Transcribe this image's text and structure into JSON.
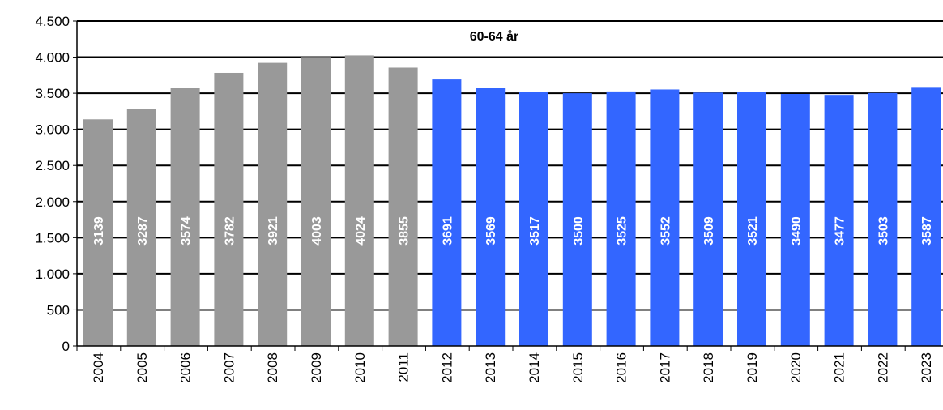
{
  "chart_data": {
    "type": "bar",
    "title": "60-64 år",
    "xlabel": "",
    "ylabel": "",
    "ylim": [
      0,
      4500
    ],
    "yticks": [
      0,
      500,
      1000,
      1500,
      2000,
      2500,
      3000,
      3500,
      4000,
      4500
    ],
    "ytick_labels": [
      "0",
      "500",
      "1.000",
      "1.500",
      "2.000",
      "2.500",
      "3.000",
      "3.500",
      "4.000",
      "4.500"
    ],
    "grid": true,
    "categories": [
      "2004",
      "2005",
      "2006",
      "2007",
      "2008",
      "2009",
      "2010",
      "2011",
      "2012",
      "2013",
      "2014",
      "2015",
      "2016",
      "2017",
      "2018",
      "2019",
      "2020",
      "2021",
      "2022",
      "2023"
    ],
    "values": [
      3139,
      3287,
      3574,
      3782,
      3921,
      4003,
      4024,
      3855,
      3691,
      3569,
      3517,
      3500,
      3525,
      3552,
      3509,
      3521,
      3490,
      3477,
      3503,
      3587
    ],
    "bar_colors": [
      "#999999",
      "#999999",
      "#999999",
      "#999999",
      "#999999",
      "#999999",
      "#999999",
      "#999999",
      "#3366ff",
      "#3366ff",
      "#3366ff",
      "#3366ff",
      "#3366ff",
      "#3366ff",
      "#3366ff",
      "#3366ff",
      "#3366ff",
      "#3366ff",
      "#3366ff",
      "#3366ff"
    ],
    "data_labels": true,
    "label_color": "#ffffff"
  }
}
